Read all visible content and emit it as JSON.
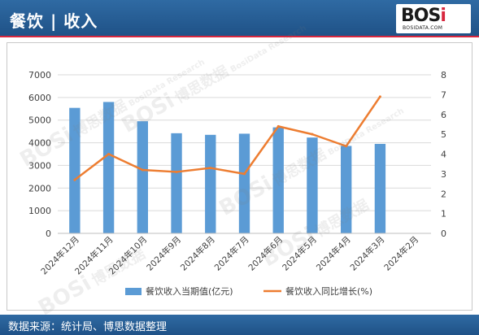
{
  "header": {
    "title": "餐饮 | 收入"
  },
  "logo": {
    "main": "BOS",
    "accent": "i",
    "sub": "BOSIDATA.COM"
  },
  "watermark": {
    "big": "BOSi",
    "cn": "博思数据",
    "en": "BosiData Research"
  },
  "footer": {
    "source": "数据来源：统计局、博思数据整理"
  },
  "colors": {
    "bar": "#5b9bd5",
    "line": "#ed7d31",
    "header": "#2a5f98"
  },
  "chart_data": {
    "type": "bar",
    "categories": [
      "2024年12月",
      "2024年11月",
      "2024年10月",
      "2024年9月",
      "2024年8月",
      "2024年7月",
      "2024年6月",
      "2024年5月",
      "2024年4月",
      "2024年3月",
      "2024年2月"
    ],
    "series": [
      {
        "name": "餐饮收入当期值(亿元)",
        "type": "bar",
        "axis": "left",
        "values": [
          5540,
          5800,
          4950,
          4420,
          4350,
          4400,
          4680,
          4230,
          3860,
          3950,
          null
        ]
      },
      {
        "name": "餐饮收入同比增长(%)",
        "type": "line",
        "axis": "right",
        "values": [
          2.7,
          4.0,
          3.2,
          3.1,
          3.3,
          3.0,
          5.4,
          5.0,
          4.4,
          6.9,
          null
        ]
      }
    ],
    "ylim": [
      0,
      7000
    ],
    "yticks": [
      "0",
      "1000",
      "2000",
      "3000",
      "4000",
      "5000",
      "6000",
      "7000"
    ],
    "y2lim": [
      0,
      8
    ],
    "y2ticks": [
      "0",
      "1",
      "2",
      "3",
      "4",
      "5",
      "6",
      "7",
      "8"
    ],
    "grid": true,
    "legend": "bottom"
  }
}
